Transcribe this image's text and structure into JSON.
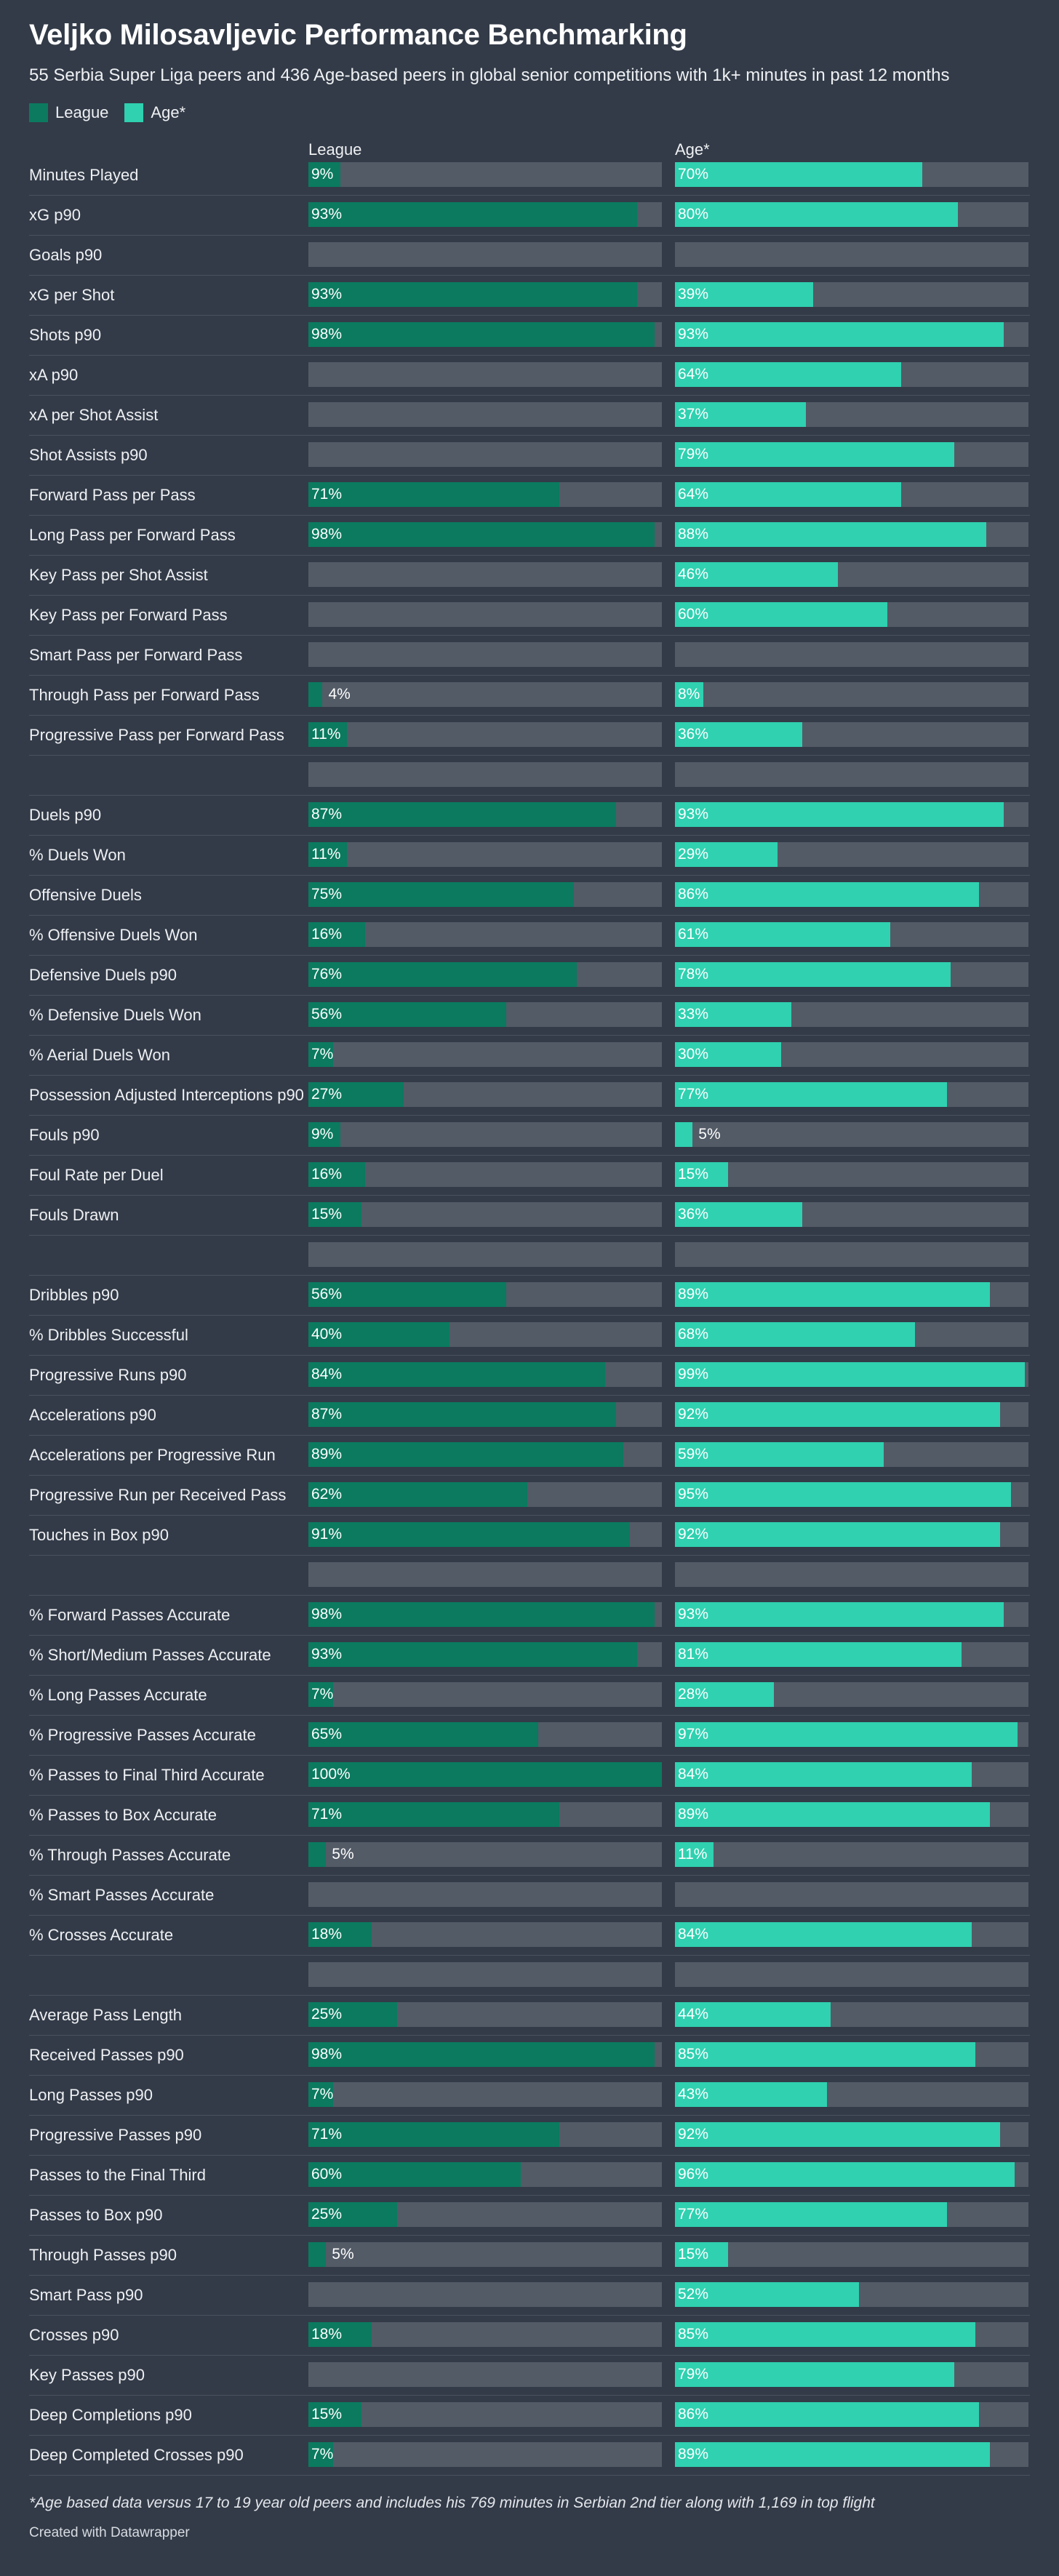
{
  "title": "Veljko Milosavljevic Performance Benchmarking",
  "subtitle": "55 Serbia Super Liga peers and 436 Age-based peers in global senior competitions with 1k+ minutes in past 12 months",
  "legend": [
    {
      "label": "League",
      "color": "#0b7a5f"
    },
    {
      "label": "Age*",
      "color": "#2fd1b0"
    }
  ],
  "columns": {
    "league": "League",
    "age": "Age*"
  },
  "footnote": "*Age based data versus 17 to 19 year old peers and includes his 769 minutes in Serbian 2nd tier along with 1,169 in top flight",
  "credit": "Created with Datawrapper",
  "chart_data": {
    "type": "bar",
    "value_unit": "percentile",
    "xlim": [
      0,
      100
    ],
    "series": [
      {
        "name": "League",
        "color": "#0b7a5f"
      },
      {
        "name": "Age*",
        "color": "#2fd1b0"
      }
    ],
    "rows": [
      {
        "label": "Minutes Played",
        "league": 9,
        "age": 70
      },
      {
        "label": "xG p90",
        "league": 93,
        "age": 80
      },
      {
        "label": "Goals p90",
        "league": null,
        "age": null
      },
      {
        "label": "xG per Shot",
        "league": 93,
        "age": 39
      },
      {
        "label": "Shots p90",
        "league": 98,
        "age": 93
      },
      {
        "label": "xA p90",
        "league": null,
        "age": 64
      },
      {
        "label": "xA per Shot Assist",
        "league": null,
        "age": 37
      },
      {
        "label": "Shot Assists p90",
        "league": null,
        "age": 79
      },
      {
        "label": "Forward Pass per Pass",
        "league": 71,
        "age": 64
      },
      {
        "label": "Long Pass per Forward Pass",
        "league": 98,
        "age": 88
      },
      {
        "label": "Key Pass per Shot Assist",
        "league": null,
        "age": 46
      },
      {
        "label": "Key Pass per Forward Pass",
        "league": null,
        "age": 60
      },
      {
        "label": "Smart Pass per Forward Pass",
        "league": null,
        "age": null
      },
      {
        "label": "Through Pass per Forward Pass",
        "league": 4,
        "age": 8
      },
      {
        "label": "Progressive Pass per Forward Pass",
        "league": 11,
        "age": 36
      },
      {
        "label": "",
        "league": null,
        "age": null
      },
      {
        "label": "Duels p90",
        "league": 87,
        "age": 93
      },
      {
        "label": "% Duels Won",
        "league": 11,
        "age": 29
      },
      {
        "label": "Offensive Duels",
        "league": 75,
        "age": 86
      },
      {
        "label": "% Offensive Duels Won",
        "league": 16,
        "age": 61
      },
      {
        "label": "Defensive Duels p90",
        "league": 76,
        "age": 78
      },
      {
        "label": "% Defensive Duels Won",
        "league": 56,
        "age": 33
      },
      {
        "label": "% Aerial Duels Won",
        "league": 7,
        "age": 30
      },
      {
        "label": "Possession Adjusted Interceptions p90",
        "league": 27,
        "age": 77
      },
      {
        "label": "Fouls p90",
        "league": 9,
        "age": 5
      },
      {
        "label": "Foul Rate per Duel",
        "league": 16,
        "age": 15
      },
      {
        "label": "Fouls Drawn",
        "league": 15,
        "age": 36
      },
      {
        "label": "",
        "league": null,
        "age": null
      },
      {
        "label": "Dribbles p90",
        "league": 56,
        "age": 89
      },
      {
        "label": "% Dribbles Successful",
        "league": 40,
        "age": 68
      },
      {
        "label": "Progressive Runs p90",
        "league": 84,
        "age": 99
      },
      {
        "label": "Accelerations p90",
        "league": 87,
        "age": 92
      },
      {
        "label": "Accelerations per Progressive Run",
        "league": 89,
        "age": 59
      },
      {
        "label": "Progressive Run per Received Pass",
        "league": 62,
        "age": 95
      },
      {
        "label": "Touches in Box p90",
        "league": 91,
        "age": 92
      },
      {
        "label": "",
        "league": null,
        "age": null
      },
      {
        "label": "% Forward Passes Accurate",
        "league": 98,
        "age": 93
      },
      {
        "label": "% Short/Medium Passes Accurate",
        "league": 93,
        "age": 81
      },
      {
        "label": "% Long Passes Accurate",
        "league": 7,
        "age": 28
      },
      {
        "label": "% Progressive Passes Accurate",
        "league": 65,
        "age": 97
      },
      {
        "label": "% Passes to Final Third Accurate",
        "league": 100,
        "age": 84
      },
      {
        "label": "% Passes to Box Accurate",
        "league": 71,
        "age": 89
      },
      {
        "label": "% Through Passes Accurate",
        "league": 5,
        "age": 11
      },
      {
        "label": "% Smart Passes Accurate",
        "league": null,
        "age": null
      },
      {
        "label": "% Crosses Accurate",
        "league": 18,
        "age": 84
      },
      {
        "label": "",
        "league": null,
        "age": null
      },
      {
        "label": "Average Pass Length",
        "league": 25,
        "age": 44
      },
      {
        "label": "Received Passes p90",
        "league": 98,
        "age": 85
      },
      {
        "label": "Long Passes p90",
        "league": 7,
        "age": 43
      },
      {
        "label": "Progressive Passes p90",
        "league": 71,
        "age": 92
      },
      {
        "label": "Passes to the Final Third",
        "league": 60,
        "age": 96
      },
      {
        "label": "Passes to Box p90",
        "league": 25,
        "age": 77
      },
      {
        "label": "Through Passes p90",
        "league": 5,
        "age": 15
      },
      {
        "label": "Smart Pass p90",
        "league": null,
        "age": 52
      },
      {
        "label": "Crosses p90",
        "league": 18,
        "age": 85
      },
      {
        "label": "Key Passes p90",
        "league": null,
        "age": 79
      },
      {
        "label": "Deep Completions p90",
        "league": 15,
        "age": 86
      },
      {
        "label": "Deep Completed Crosses p90",
        "league": 7,
        "age": 89
      }
    ]
  }
}
